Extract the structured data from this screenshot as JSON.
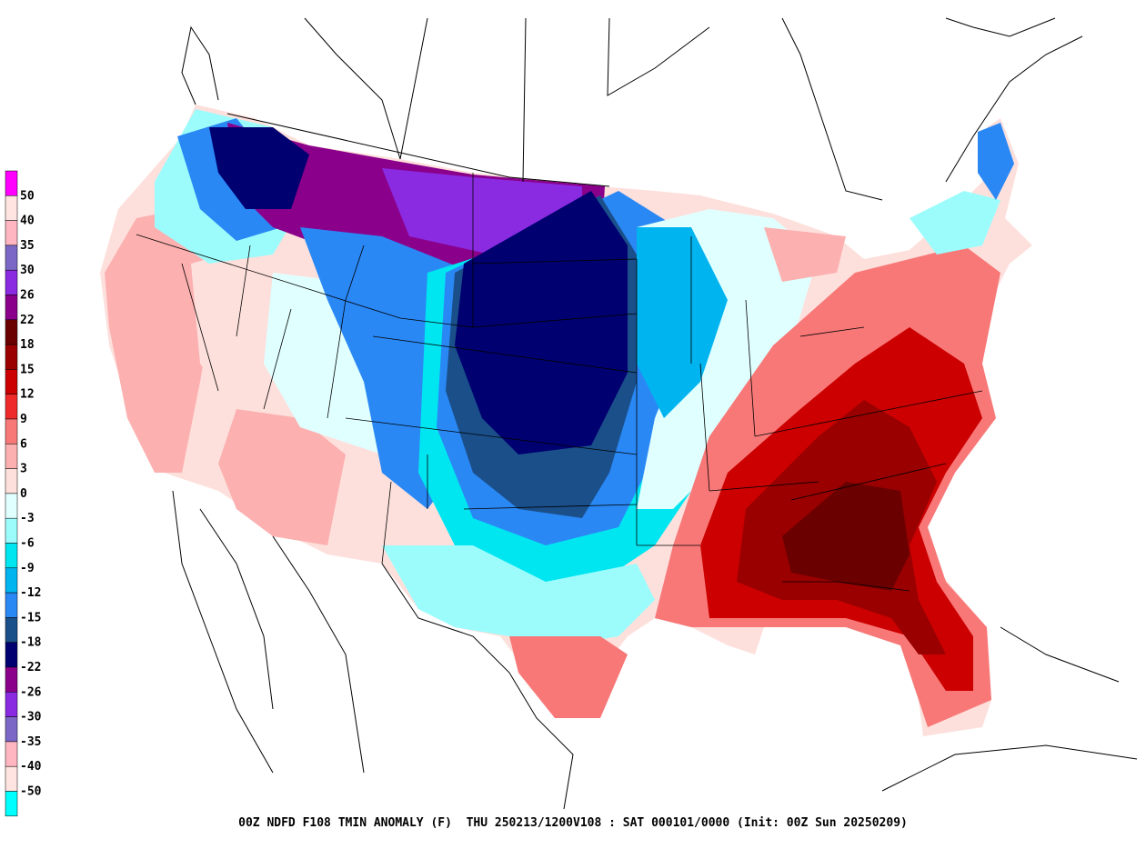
{
  "title": "00Z NDFD F108 TMIN ANOMALY (F)  THU 250213/1200V108 : SAT 000101/0000 (Init: 00Z Sun 20250209)",
  "legend": [
    {
      "label": "50",
      "color": "#ff00ff"
    },
    {
      "label": "40",
      "color": "#ffe4e1"
    },
    {
      "label": "35",
      "color": "#ffb6c1"
    },
    {
      "label": "30",
      "color": "#7b68c6"
    },
    {
      "label": "26",
      "color": "#8a2be2"
    },
    {
      "label": "22",
      "color": "#8b008b"
    },
    {
      "label": "18",
      "color": "#6b0000"
    },
    {
      "label": "15",
      "color": "#9a0000"
    },
    {
      "label": "12",
      "color": "#cc0000"
    },
    {
      "label": "9",
      "color": "#ee2a2a"
    },
    {
      "label": "6",
      "color": "#f87878"
    },
    {
      "label": "3",
      "color": "#fcb0b0"
    },
    {
      "label": "0",
      "color": "#fde0dc"
    },
    {
      "label": "-3",
      "color": "#e0ffff"
    },
    {
      "label": "-6",
      "color": "#9cfcfc"
    },
    {
      "label": "-9",
      "color": "#00e6f0"
    },
    {
      "label": "-12",
      "color": "#00b4f0"
    },
    {
      "label": "-15",
      "color": "#2a88f5"
    },
    {
      "label": "-18",
      "color": "#1a4f8a"
    },
    {
      "label": "-22",
      "color": "#000070"
    },
    {
      "label": "-26",
      "color": "#8b008b"
    },
    {
      "label": "-30",
      "color": "#8a2be2"
    },
    {
      "label": "-35",
      "color": "#7b68c6"
    },
    {
      "label": "-40",
      "color": "#ffb6c1"
    },
    {
      "label": "-50",
      "color": "#ffe4e1"
    },
    {
      "label": "",
      "color": "#00ffff"
    }
  ]
}
